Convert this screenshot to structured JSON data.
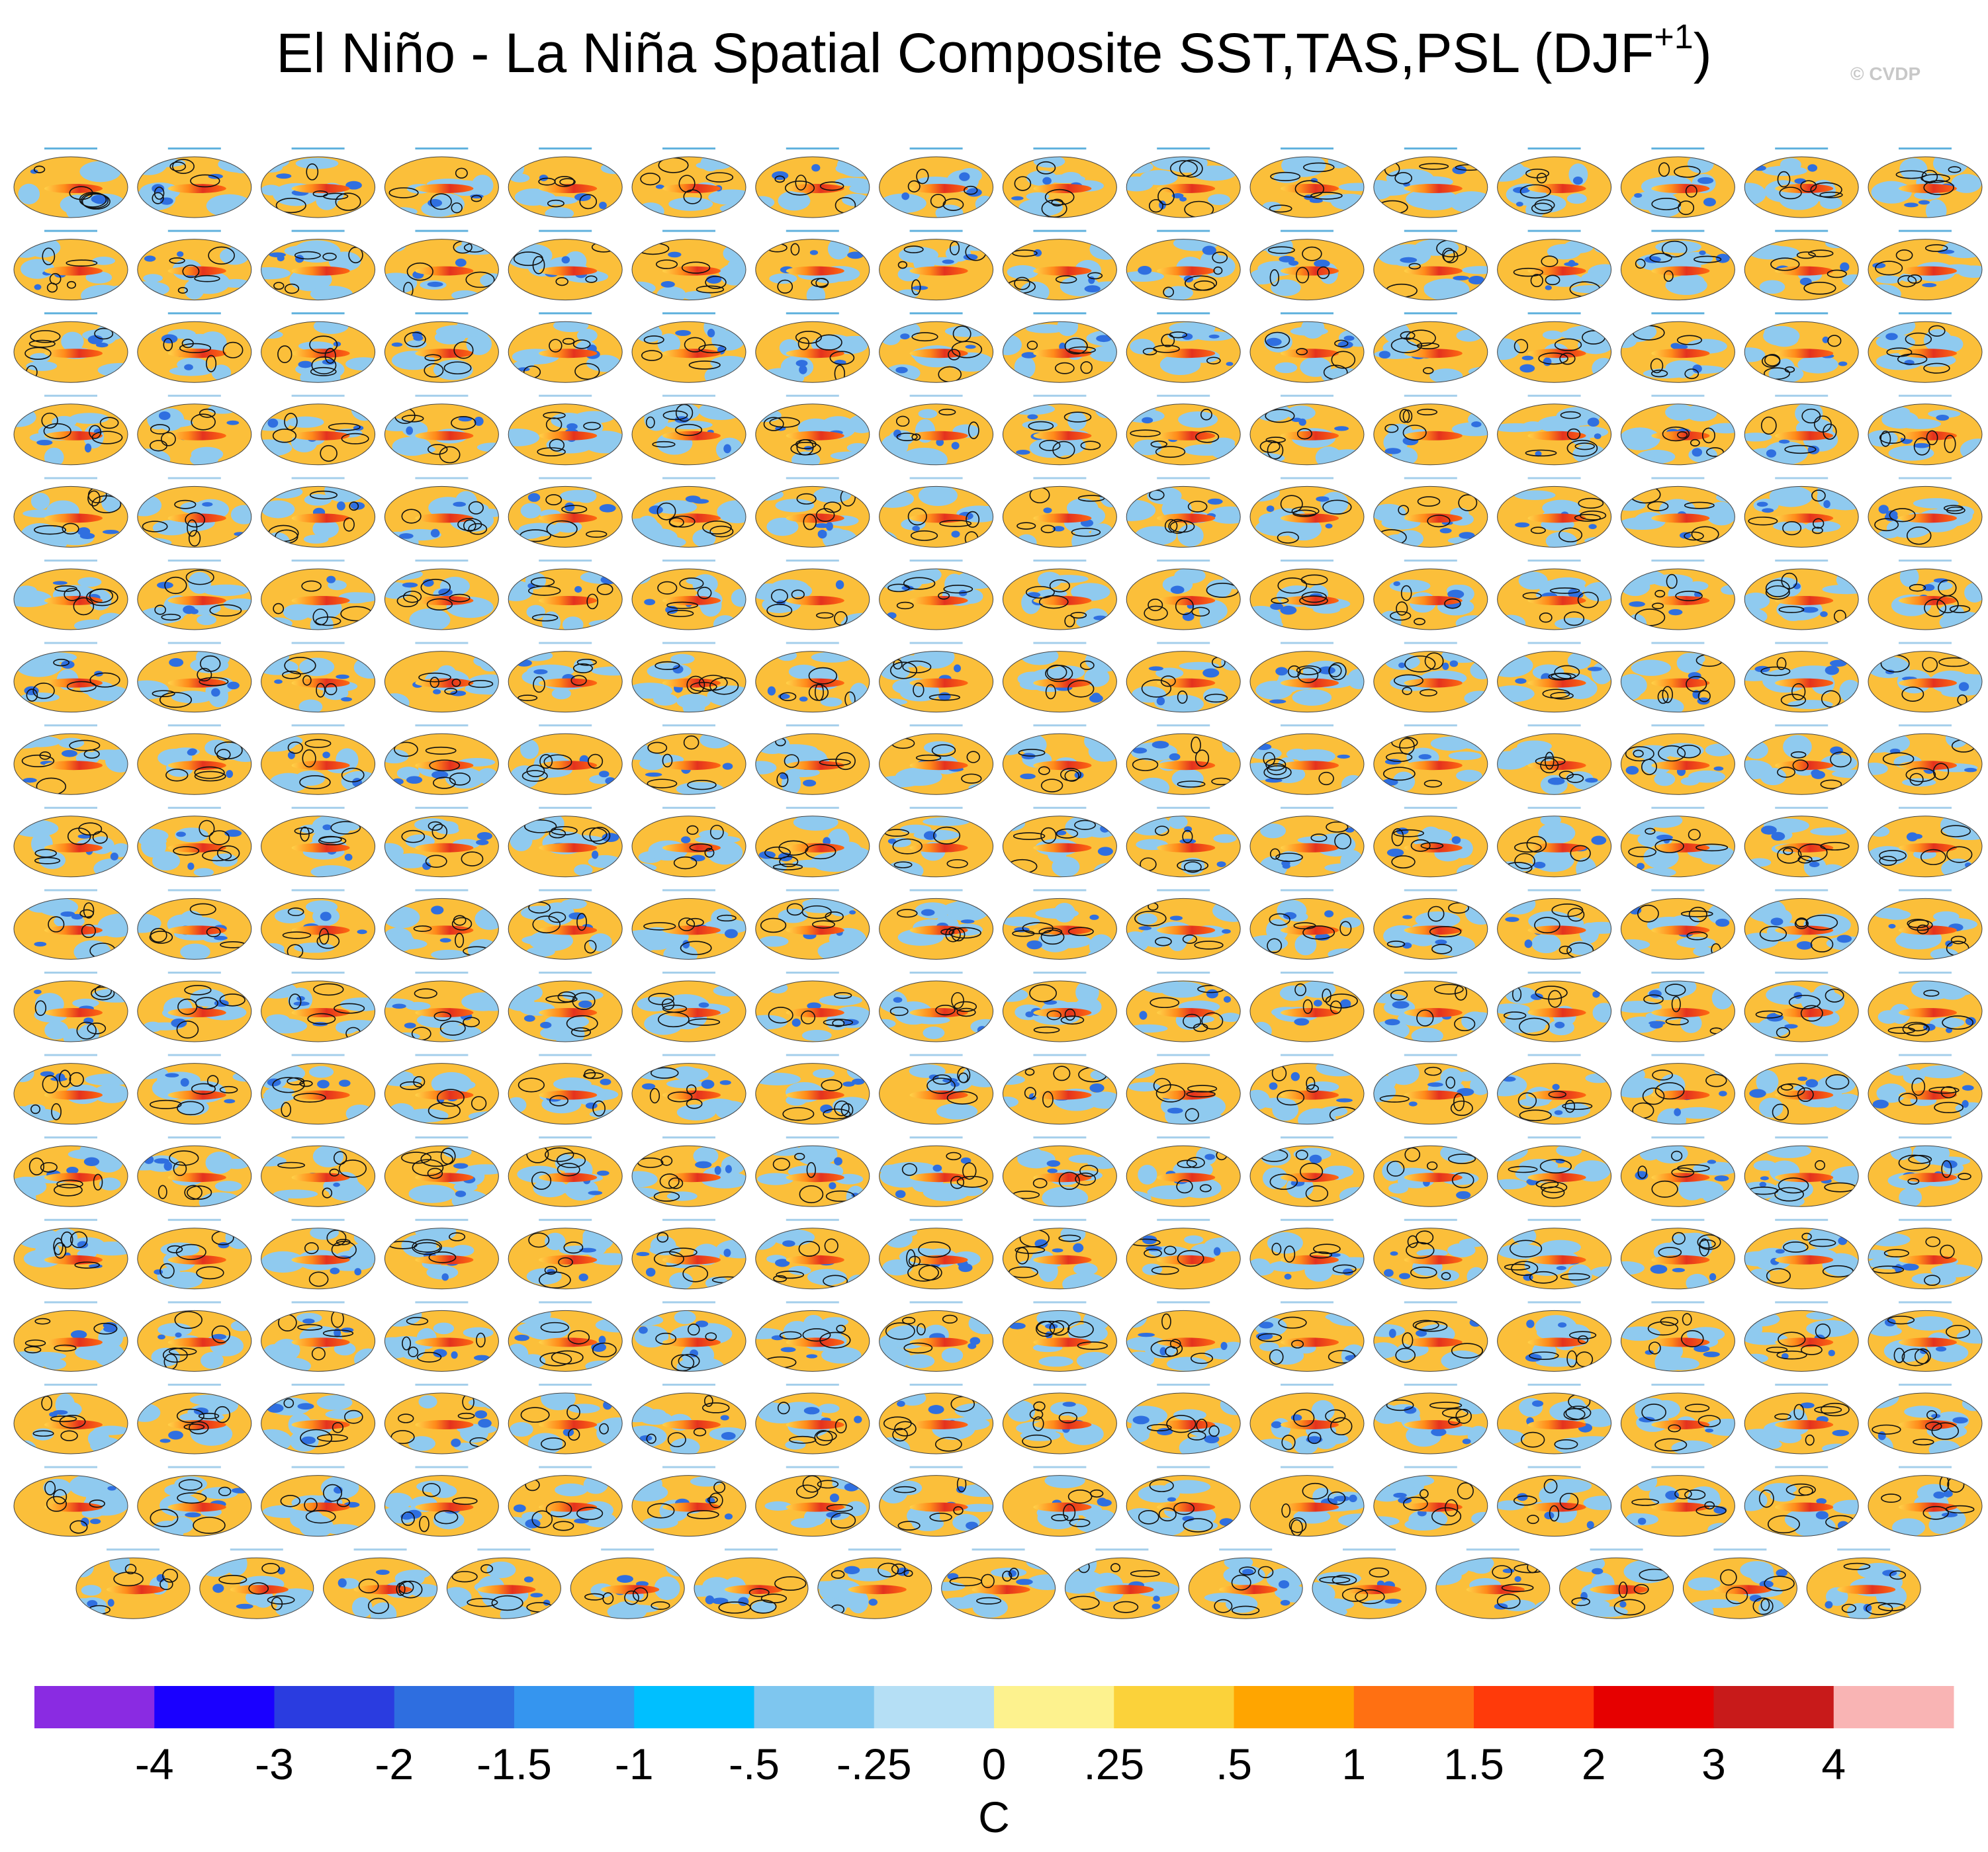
{
  "chart_data": {
    "type": "heatmap",
    "title": "El Niño - La Niña Spatial Composite SST,TAS,PSL (DJF",
    "title_superscript": "+1",
    "title_suffix": ")",
    "watermark": "© CVDP",
    "panel_grid": {
      "rows": 18,
      "columns": 16,
      "last_row_panels": 15,
      "total_panels": 287,
      "description": "Small-multiple global composite maps (one per model member/observation)"
    },
    "panel_labels_first_row": [
      "ERSST v5 / BEST / ERA5",
      "HadISST / GISTEMP / ERAS_1",
      "ACCESS-ESM1-5 (r1i1p1f1)",
      "ACCESS-ESM1-5 (r2i1p1f1)",
      "ACCESS-ESM1-5 (r3i1p1f1)",
      "ACCESS-ESM1-5 (r4i1p1f1)",
      "ACCESS-ESM1-5 (r5i1p1f1)",
      "ACCESS-ESM1-5 (r6i1p1f1)",
      "ACCESS-ESM1-5 (r7i1p1f1)",
      "ACCESS-ESM1-5 (r8i1p1f1)",
      "ACCESS-ESM1-5 (r9i1p1f1)",
      "ACCESS-ESM1-5 (r10i1p1f1)",
      "ACCESS-ESM1-5 (r11i1p1f1)",
      "ACCESS-ESM1-5 (r12i1p1f1)",
      "ACCESS-ESM1-5 (r13i1p1f1)",
      "ACCESS-ESM1-5 (r14i1p1f1)"
    ],
    "colorbar": {
      "label": "C",
      "tick_labels": [
        "-4",
        "-3",
        "-2",
        "-1.5",
        "-1",
        "-.5",
        "-.25",
        "0",
        ".25",
        ".5",
        "1",
        "1.5",
        "2",
        "3",
        "4"
      ],
      "bins": [
        {
          "range": "< -4",
          "color": "#8a2be2"
        },
        {
          "range": "-4 to -3",
          "color": "#1a00ff"
        },
        {
          "range": "-3 to -2",
          "color": "#2a3ce0"
        },
        {
          "range": "-2 to -1.5",
          "color": "#2e6ee0"
        },
        {
          "range": "-1.5 to -1",
          "color": "#3595ef"
        },
        {
          "range": "-1 to -.5",
          "color": "#00bfff"
        },
        {
          "range": "-.5 to -.25",
          "color": "#7ec6ef"
        },
        {
          "range": "-.25 to 0",
          "color": "#b5dff5"
        },
        {
          "range": "0 to .25",
          "color": "#fdf28e"
        },
        {
          "range": ".25 to .5",
          "color": "#fbd23a"
        },
        {
          "range": ".5 to 1",
          "color": "#ffa500"
        },
        {
          "range": "1 to 1.5",
          "color": "#ff7012"
        },
        {
          "range": "1.5 to 2",
          "color": "#ff3a0a"
        },
        {
          "range": "2 to 3",
          "color": "#e60000"
        },
        {
          "range": "3 to 4",
          "color": "#c81a1a"
        },
        {
          "range": "> 4",
          "color": "#f9b4b4"
        }
      ]
    },
    "map_colors": {
      "background_warm": "#fbbf3a",
      "background_cool": "#8fcaef",
      "enso_tongue": "#e4321e",
      "contour": "#111111",
      "cold_anomaly": "#2f6fe0"
    }
  }
}
